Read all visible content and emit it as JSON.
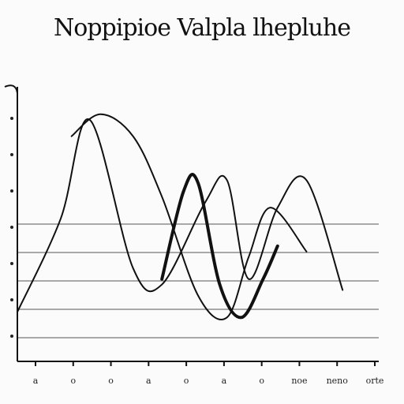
{
  "chart_data": {
    "type": "line",
    "title": "Noppipioe Valpla lhepluhe",
    "x_tick_labels": [
      "a",
      "o",
      "o",
      "a",
      "o",
      "a",
      "o",
      "noe",
      "neno",
      "orte"
    ],
    "ylim": [
      0,
      10
    ],
    "xlim": [
      0,
      10
    ],
    "grid": "horizontal",
    "series": [
      {
        "x": [
          0.0,
          1.2,
          2.0,
          3.2,
          4.0,
          5.2,
          5.8,
          6.4,
          7.2,
          8.0,
          9.0
        ],
        "y": [
          1.8,
          5.2,
          8.8,
          3.4,
          2.8,
          5.8,
          6.6,
          3.0,
          5.6,
          6.6,
          2.6
        ]
      },
      {
        "x": [
          1.5,
          2.3,
          3.2,
          4.0,
          5.0,
          5.8,
          6.4,
          7.0,
          8.0
        ],
        "y": [
          8.2,
          9.0,
          8.2,
          6.0,
          2.4,
          1.6,
          3.8,
          5.6,
          4.0
        ]
      },
      {
        "x": [
          4.0,
          4.6,
          5.0,
          5.6,
          6.2,
          6.8,
          7.2
        ],
        "y": [
          3.0,
          6.2,
          6.5,
          2.8,
          1.6,
          3.0,
          4.2
        ]
      }
    ]
  }
}
